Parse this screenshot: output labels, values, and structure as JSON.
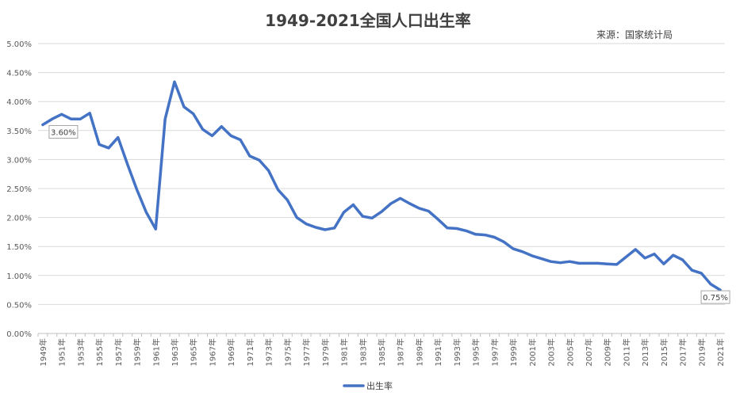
{
  "chart_data": {
    "type": "line",
    "title": "1949-2021全国人口出生率",
    "source": "来源：国家统计局",
    "xlabel": "",
    "ylabel": "",
    "ylim": [
      0,
      5.0
    ],
    "yticks": [
      "0.00%",
      "0.50%",
      "1.00%",
      "1.50%",
      "2.00%",
      "2.50%",
      "3.00%",
      "3.50%",
      "4.00%",
      "4.50%",
      "5.00%"
    ],
    "grid": true,
    "legend_position": "bottom",
    "x": [
      1949,
      1950,
      1951,
      1952,
      1953,
      1954,
      1955,
      1956,
      1957,
      1958,
      1959,
      1960,
      1961,
      1962,
      1963,
      1964,
      1965,
      1966,
      1967,
      1968,
      1969,
      1970,
      1971,
      1972,
      1973,
      1974,
      1975,
      1976,
      1977,
      1978,
      1979,
      1980,
      1981,
      1982,
      1983,
      1984,
      1985,
      1986,
      1987,
      1988,
      1989,
      1990,
      1991,
      1992,
      1993,
      1994,
      1995,
      1996,
      1997,
      1998,
      1999,
      2000,
      2001,
      2002,
      2003,
      2004,
      2005,
      2006,
      2007,
      2008,
      2009,
      2010,
      2011,
      2012,
      2013,
      2014,
      2015,
      2016,
      2017,
      2018,
      2019,
      2020,
      2021
    ],
    "xtick_labels": [
      "1949年",
      "1951年",
      "1953年",
      "1955年",
      "1957年",
      "1959年",
      "1961年",
      "1963年",
      "1965年",
      "1967年",
      "1969年",
      "1971年",
      "1973年",
      "1975年",
      "1977年",
      "1979年",
      "1981年",
      "1983年",
      "1985年",
      "1987年",
      "1989年",
      "1991年",
      "1993年",
      "1995年",
      "1997年",
      "1999年",
      "2001年",
      "2003年",
      "2005年",
      "2007年",
      "2009年",
      "2011年",
      "2013年",
      "2015年",
      "2017年",
      "2019年",
      "2021年"
    ],
    "series": [
      {
        "name": "出生率",
        "color": "#4472C4",
        "values": [
          3.6,
          3.7,
          3.78,
          3.7,
          3.7,
          3.8,
          3.26,
          3.2,
          3.38,
          2.92,
          2.48,
          2.09,
          1.8,
          3.7,
          4.34,
          3.91,
          3.79,
          3.52,
          3.41,
          3.57,
          3.41,
          3.34,
          3.06,
          2.99,
          2.81,
          2.48,
          2.3,
          2.0,
          1.89,
          1.83,
          1.79,
          1.82,
          2.09,
          2.22,
          2.02,
          1.99,
          2.1,
          2.24,
          2.33,
          2.24,
          2.16,
          2.11,
          1.97,
          1.82,
          1.81,
          1.77,
          1.71,
          1.7,
          1.66,
          1.58,
          1.46,
          1.41,
          1.34,
          1.29,
          1.24,
          1.22,
          1.24,
          1.21,
          1.21,
          1.21,
          1.2,
          1.19,
          1.32,
          1.45,
          1.3,
          1.37,
          1.2,
          1.35,
          1.27,
          1.09,
          1.04,
          0.85,
          0.75
        ]
      }
    ],
    "annotations": [
      {
        "label": "3.60%",
        "year": 1949
      },
      {
        "label": "0.75%",
        "year": 2021
      }
    ]
  }
}
